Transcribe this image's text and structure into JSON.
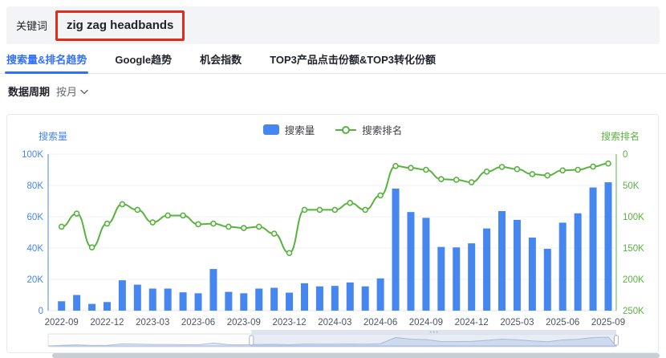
{
  "header": {
    "keyword_label": "关键词",
    "keyword_value": "zig zag headbands"
  },
  "tabs": [
    {
      "label": "搜索量&排名趋势",
      "active": true
    },
    {
      "label": "Google趋势",
      "active": false
    },
    {
      "label": "机会指数",
      "active": false
    },
    {
      "label": "TOP3产品点击份额&TOP3转化份额",
      "active": false
    }
  ],
  "filters": {
    "period_label": "数据周期",
    "period_value": "按月"
  },
  "colors": {
    "accent_blue": "#336fff",
    "bar_blue": "#4586f0",
    "line_green": "#58b33e",
    "annotation_red": "#e12b1d"
  },
  "chart_data": {
    "type": "bar+line",
    "legend_position": "top-center",
    "grid": true,
    "x": [
      "2022-09",
      "2022-10",
      "2022-11",
      "2022-12",
      "2023-01",
      "2023-02",
      "2023-03",
      "2023-04",
      "2023-05",
      "2023-06",
      "2023-07",
      "2023-08",
      "2023-09",
      "2023-10",
      "2023-11",
      "2023-12",
      "2024-01",
      "2024-02",
      "2024-03",
      "2024-04",
      "2024-05",
      "2024-06",
      "2024-07",
      "2024-08",
      "2024-09",
      "2024-10",
      "2024-11",
      "2024-12",
      "2025-01",
      "2025-02",
      "2025-03",
      "2025-04",
      "2025-05",
      "2025-06",
      "2025-07",
      "2025-08",
      "2025-09"
    ],
    "x_label_every": 3,
    "left_axis": {
      "title": "搜索量",
      "ticks": [
        "100K",
        "80K",
        "60K",
        "40K",
        "20K",
        "0"
      ],
      "min": 0,
      "max": 100000,
      "color": "#4586f0"
    },
    "right_axis": {
      "title": "搜索排名",
      "ticks": [
        "0",
        "50K",
        "100K",
        "150K",
        "200K",
        "250K"
      ],
      "min": 0,
      "max": 250000,
      "inverted": true,
      "color": "#58b33e"
    },
    "series": [
      {
        "name": "搜索量",
        "type": "bar",
        "axis": "left",
        "color": "#4586f0",
        "values": [
          6000,
          10000,
          4300,
          5500,
          19400,
          16600,
          14100,
          14100,
          11700,
          11100,
          26600,
          12000,
          11100,
          14100,
          14600,
          11500,
          17500,
          15500,
          15800,
          18000,
          15500,
          20600,
          78000,
          63000,
          59300,
          40700,
          40400,
          43000,
          52500,
          63600,
          58000,
          46700,
          39500,
          56200,
          62200,
          78700,
          82000
        ]
      },
      {
        "name": "搜索排名",
        "type": "line",
        "axis": "right",
        "color": "#58b33e",
        "values": [
          116000,
          95000,
          149000,
          111000,
          80000,
          89000,
          109000,
          98000,
          98000,
          112000,
          111000,
          116000,
          118000,
          116000,
          127000,
          158000,
          89000,
          89000,
          89000,
          78000,
          89000,
          66000,
          19000,
          22000,
          25000,
          40000,
          41000,
          45000,
          28000,
          20500,
          24000,
          32000,
          34000,
          26000,
          25000,
          20000,
          15000
        ]
      }
    ],
    "datazoom": {
      "window_start_index": 12,
      "window_end_index": 36
    }
  }
}
